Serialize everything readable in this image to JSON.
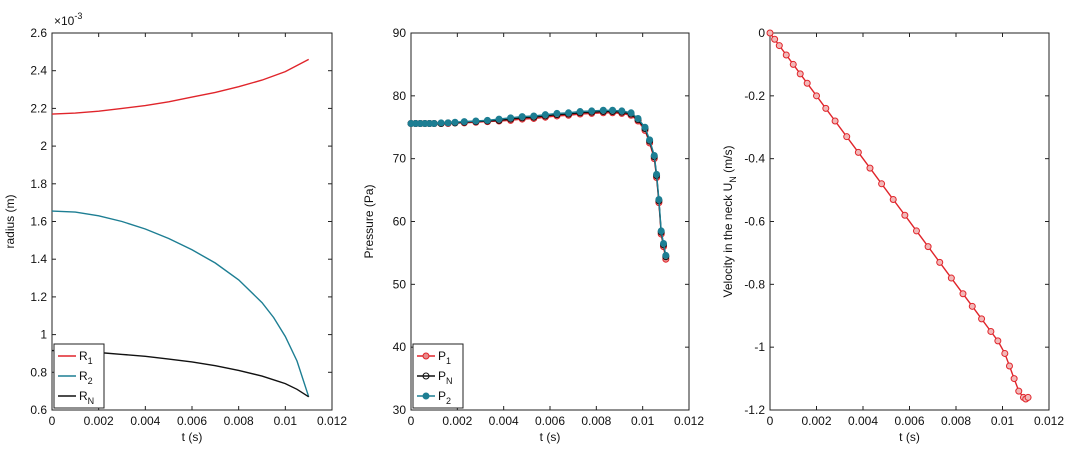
{
  "chart_data": [
    {
      "type": "line",
      "xlabel": "t (s)",
      "ylabel": "radius (m)",
      "y_multiplier": "×10",
      "y_multiplier_exp": "-3",
      "xlim": [
        0,
        0.012
      ],
      "ylim": [
        0.6,
        2.6
      ],
      "xticks": [
        "0",
        "0.002",
        "0.004",
        "0.006",
        "0.008",
        "0.01",
        "0.012"
      ],
      "yticks": [
        "0.6",
        "0.8",
        "1",
        "1.2",
        "1.4",
        "1.6",
        "1.8",
        "2",
        "2.2",
        "2.4",
        "2.6"
      ],
      "grid": false,
      "legend_position": "bottom-left",
      "series": [
        {
          "name": "R",
          "sub": "1",
          "color": "#e0252b",
          "marker": "none",
          "x": [
            0,
            0.001,
            0.002,
            0.003,
            0.004,
            0.005,
            0.006,
            0.007,
            0.008,
            0.009,
            0.01,
            0.011
          ],
          "y": [
            2.17,
            2.175,
            2.185,
            2.2,
            2.215,
            2.235,
            2.26,
            2.285,
            2.315,
            2.35,
            2.395,
            2.46
          ]
        },
        {
          "name": "R",
          "sub": "2",
          "color": "#1d7e93",
          "marker": "none",
          "x": [
            0,
            0.001,
            0.002,
            0.003,
            0.004,
            0.005,
            0.006,
            0.007,
            0.008,
            0.009,
            0.0095,
            0.01,
            0.0105,
            0.011
          ],
          "y": [
            1.655,
            1.65,
            1.63,
            1.6,
            1.56,
            1.51,
            1.45,
            1.38,
            1.29,
            1.17,
            1.09,
            0.99,
            0.86,
            0.67
          ]
        },
        {
          "name": "R",
          "sub": "N",
          "color": "#111111",
          "marker": "none",
          "x": [
            0,
            0.001,
            0.002,
            0.003,
            0.004,
            0.005,
            0.006,
            0.007,
            0.008,
            0.009,
            0.01,
            0.0105,
            0.011
          ],
          "y": [
            0.915,
            0.912,
            0.905,
            0.895,
            0.885,
            0.87,
            0.855,
            0.835,
            0.81,
            0.78,
            0.74,
            0.71,
            0.67
          ]
        }
      ]
    },
    {
      "type": "line",
      "xlabel": "t (s)",
      "ylabel": "Pressure (Pa)",
      "xlim": [
        0,
        0.012
      ],
      "ylim": [
        30,
        90
      ],
      "xticks": [
        "0",
        "0.002",
        "0.004",
        "0.006",
        "0.008",
        "0.01",
        "0.012"
      ],
      "yticks": [
        "30",
        "40",
        "50",
        "60",
        "70",
        "80",
        "90"
      ],
      "grid": false,
      "legend_position": "bottom-left",
      "series": [
        {
          "name": "P",
          "sub": "1",
          "color": "#e0252b",
          "marker": "circle",
          "fill": "#e88a8a",
          "x": [
            0,
            0.0002,
            0.0004,
            0.0006,
            0.0008,
            0.001,
            0.0013,
            0.0016,
            0.0019,
            0.0023,
            0.0028,
            0.0033,
            0.0038,
            0.0043,
            0.0048,
            0.0053,
            0.0058,
            0.0063,
            0.0068,
            0.0073,
            0.0078,
            0.0083,
            0.0087,
            0.0091,
            0.0095,
            0.0098,
            0.0101,
            0.0103,
            0.0105,
            0.0106,
            0.0107,
            0.0108,
            0.0109,
            0.011
          ],
          "y": [
            75.6,
            75.6,
            75.6,
            75.6,
            75.6,
            75.6,
            75.6,
            75.6,
            75.7,
            75.7,
            75.8,
            75.9,
            76.0,
            76.1,
            76.3,
            76.4,
            76.6,
            76.8,
            76.9,
            77.1,
            77.2,
            77.3,
            77.3,
            77.2,
            76.9,
            76.0,
            74.5,
            72.5,
            70.0,
            67.0,
            63.0,
            58.0,
            56.0,
            54.0
          ]
        },
        {
          "name": "P",
          "sub": "N",
          "color": "#111111",
          "marker": "circle",
          "fill": "none",
          "x": [
            0,
            0.0002,
            0.0004,
            0.0006,
            0.0008,
            0.001,
            0.0013,
            0.0016,
            0.0019,
            0.0023,
            0.0028,
            0.0033,
            0.0038,
            0.0043,
            0.0048,
            0.0053,
            0.0058,
            0.0063,
            0.0068,
            0.0073,
            0.0078,
            0.0083,
            0.0087,
            0.0091,
            0.0095,
            0.0098,
            0.0101,
            0.0103,
            0.0105,
            0.0106,
            0.0107,
            0.0108,
            0.0109,
            0.011
          ],
          "y": [
            75.6,
            75.6,
            75.6,
            75.6,
            75.6,
            75.6,
            75.6,
            75.7,
            75.7,
            75.8,
            75.9,
            76.0,
            76.1,
            76.3,
            76.5,
            76.6,
            76.8,
            77.0,
            77.1,
            77.3,
            77.4,
            77.5,
            77.5,
            77.4,
            77.1,
            76.2,
            74.8,
            72.8,
            70.3,
            67.3,
            63.3,
            58.3,
            56.3,
            54.4
          ]
        },
        {
          "name": "P",
          "sub": "2",
          "color": "#1d7e93",
          "marker": "circle",
          "fill": "#1d7e93",
          "x": [
            0,
            0.0002,
            0.0004,
            0.0006,
            0.0008,
            0.001,
            0.0013,
            0.0016,
            0.0019,
            0.0023,
            0.0028,
            0.0033,
            0.0038,
            0.0043,
            0.0048,
            0.0053,
            0.0058,
            0.0063,
            0.0068,
            0.0073,
            0.0078,
            0.0083,
            0.0087,
            0.0091,
            0.0095,
            0.0098,
            0.0101,
            0.0103,
            0.0105,
            0.0106,
            0.0107,
            0.0108,
            0.0109,
            0.011
          ],
          "y": [
            75.6,
            75.6,
            75.6,
            75.6,
            75.6,
            75.6,
            75.7,
            75.7,
            75.8,
            75.9,
            76.0,
            76.1,
            76.3,
            76.5,
            76.7,
            76.8,
            77.0,
            77.2,
            77.3,
            77.5,
            77.6,
            77.7,
            77.7,
            77.6,
            77.3,
            76.4,
            75.0,
            73.0,
            70.5,
            67.5,
            63.5,
            58.5,
            56.5,
            54.6
          ]
        }
      ]
    },
    {
      "type": "line",
      "xlabel": "t (s)",
      "ylabel": "Velocity in the neck U",
      "ylabel_sub": "N",
      "ylabel_unit": " (m/s)",
      "xlim": [
        0,
        0.012
      ],
      "ylim": [
        -1.2,
        0
      ],
      "xticks": [
        "0",
        "0.002",
        "0.004",
        "0.006",
        "0.008",
        "0.01",
        "0.012"
      ],
      "yticks": [
        "-1.2",
        "-1",
        "-0.8",
        "-0.6",
        "-0.4",
        "-0.2",
        "0"
      ],
      "grid": false,
      "series": [
        {
          "name": "",
          "color": "#e0252b",
          "marker": "circle",
          "fill": "#f2b8b8",
          "x": [
            0,
            0.0002,
            0.0004,
            0.0007,
            0.001,
            0.0013,
            0.0016,
            0.002,
            0.0024,
            0.0028,
            0.0033,
            0.0038,
            0.0043,
            0.0048,
            0.0053,
            0.0058,
            0.0063,
            0.0068,
            0.0073,
            0.0078,
            0.0083,
            0.0087,
            0.0091,
            0.0095,
            0.0098,
            0.0101,
            0.0103,
            0.0105,
            0.0107,
            0.0109,
            0.011,
            0.0111
          ],
          "y": [
            0,
            -0.02,
            -0.04,
            -0.07,
            -0.1,
            -0.13,
            -0.16,
            -0.2,
            -0.24,
            -0.28,
            -0.33,
            -0.38,
            -0.43,
            -0.48,
            -0.53,
            -0.58,
            -0.63,
            -0.68,
            -0.73,
            -0.78,
            -0.83,
            -0.87,
            -0.91,
            -0.95,
            -0.98,
            -1.02,
            -1.06,
            -1.1,
            -1.14,
            -1.16,
            -1.165,
            -1.16
          ]
        }
      ]
    }
  ]
}
